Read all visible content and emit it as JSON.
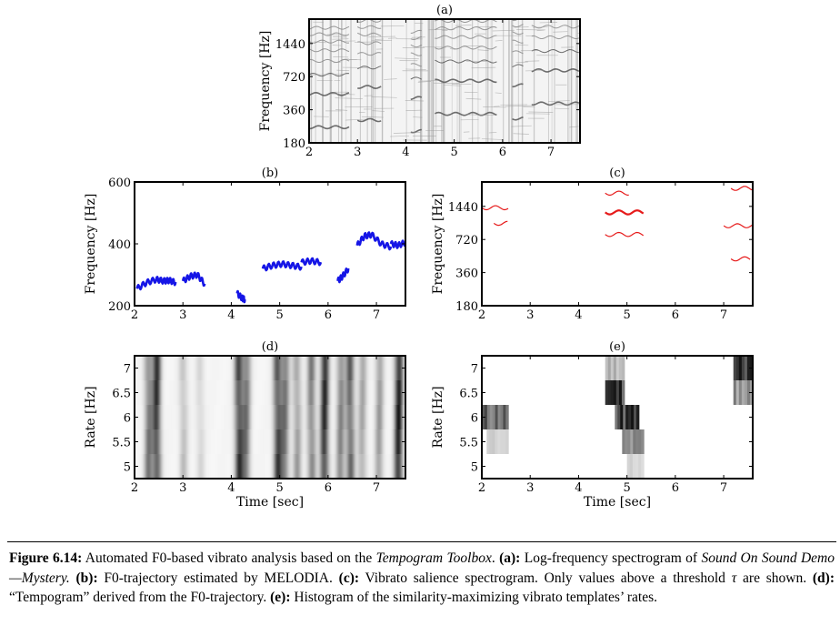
{
  "figure": {
    "panels": [
      {
        "id": "a",
        "title": "(a)",
        "ylabel": "Frequency [Hz]",
        "xlabel": "",
        "y_ticks": [
          "180",
          "360",
          "720",
          "1440"
        ],
        "x_ticks": [
          "2",
          "3",
          "4",
          "5",
          "6",
          "7"
        ]
      },
      {
        "id": "b",
        "title": "(b)",
        "ylabel": "Frequency [Hz]",
        "xlabel": "",
        "y_ticks": [
          "200",
          "400",
          "600"
        ],
        "x_ticks": [
          "2",
          "3",
          "4",
          "5",
          "6",
          "7"
        ]
      },
      {
        "id": "c",
        "title": "(c)",
        "ylabel": "Frequency [Hz]",
        "xlabel": "",
        "y_ticks": [
          "180",
          "360",
          "720",
          "1440"
        ],
        "x_ticks": [
          "2",
          "3",
          "4",
          "5",
          "6",
          "7"
        ]
      },
      {
        "id": "d",
        "title": "(d)",
        "ylabel": "Rate [Hz]",
        "xlabel": "Time [sec]",
        "y_ticks": [
          "5",
          "5.5",
          "6",
          "6.5",
          "7"
        ],
        "x_ticks": [
          "2",
          "3",
          "4",
          "5",
          "6",
          "7"
        ]
      },
      {
        "id": "e",
        "title": "(e)",
        "ylabel": "Rate [Hz]",
        "xlabel": "Time [sec]",
        "y_ticks": [
          "5",
          "5.5",
          "6",
          "6.5",
          "7"
        ],
        "x_ticks": [
          "2",
          "3",
          "4",
          "5",
          "6",
          "7"
        ]
      }
    ]
  },
  "chart_data": [
    {
      "type": "heatmap",
      "panel": "a",
      "title": "(a)",
      "ylabel": "Frequency [Hz]",
      "xlim": [
        2,
        7.6
      ],
      "ylim": [
        180,
        2400
      ],
      "yscale": "log",
      "note_values": []
    },
    {
      "type": "line",
      "panel": "b",
      "title": "(b)",
      "ylabel": "Frequency [Hz]",
      "xlim": [
        2,
        7.6
      ],
      "ylim": [
        200,
        600
      ],
      "color": "#1515e6",
      "series": [
        {
          "x": [
            2.05,
            2.25,
            2.45,
            2.6,
            2.72,
            2.85
          ],
          "y": [
            255,
            275,
            285,
            280,
            282,
            275
          ]
        },
        {
          "x": [
            3.0,
            3.15,
            3.3,
            3.45
          ],
          "y": [
            280,
            295,
            300,
            270
          ]
        },
        {
          "x": [
            4.12,
            4.22,
            4.28
          ],
          "y": [
            240,
            225,
            220
          ]
        },
        {
          "x": [
            4.65,
            4.85,
            5.05,
            5.25,
            5.45
          ],
          "y": [
            320,
            330,
            335,
            330,
            325
          ]
        },
        {
          "x": [
            5.45,
            5.65,
            5.85
          ],
          "y": [
            340,
            345,
            340
          ]
        },
        {
          "x": [
            6.2,
            6.3,
            6.42
          ],
          "y": [
            280,
            295,
            320
          ]
        },
        {
          "x": [
            6.6,
            6.75,
            6.9,
            7.1,
            7.3
          ],
          "y": [
            395,
            425,
            430,
            400,
            390
          ]
        },
        {
          "x": [
            7.3,
            7.45,
            7.6
          ],
          "y": [
            400,
            395,
            405
          ]
        }
      ]
    },
    {
      "type": "line",
      "panel": "c",
      "title": "(c)",
      "ylabel": "Frequency [Hz]",
      "xlim": [
        2,
        7.6
      ],
      "ylim": [
        180,
        2400
      ],
      "yscale": "log",
      "color": "#e61a1a",
      "series": [
        {
          "x0": 2.0,
          "x1": 2.55,
          "y": 1400
        },
        {
          "x0": 2.25,
          "x1": 2.55,
          "y": 1010
        },
        {
          "x0": 4.55,
          "x1": 5.05,
          "y": 1900
        },
        {
          "x0": 4.55,
          "x1": 5.35,
          "y": 1270
        },
        {
          "x0": 4.55,
          "x1": 5.35,
          "y": 800
        },
        {
          "x0": 7.15,
          "x1": 7.6,
          "y": 2100
        },
        {
          "x0": 7.0,
          "x1": 7.6,
          "y": 960
        },
        {
          "x0": 7.15,
          "x1": 7.55,
          "y": 480
        }
      ]
    },
    {
      "type": "heatmap",
      "panel": "d",
      "title": "(d)",
      "ylabel": "Rate [Hz]",
      "xlabel": "Time [sec]",
      "xlim": [
        2,
        7.6
      ],
      "ylim": [
        4.75,
        7.25
      ]
    },
    {
      "type": "heatmap",
      "panel": "e",
      "title": "(e)",
      "ylabel": "Rate [Hz]",
      "xlabel": "Time [sec]",
      "xlim": [
        2,
        7.6
      ],
      "ylim": [
        4.75,
        7.25
      ],
      "cells": [
        {
          "x0": 2.0,
          "x1": 2.55,
          "rate": 6.0,
          "level": 0.7
        },
        {
          "x0": 2.1,
          "x1": 2.55,
          "rate": 5.5,
          "level": 0.2
        },
        {
          "x0": 4.55,
          "x1": 4.95,
          "rate": 7.0,
          "level": 0.35
        },
        {
          "x0": 4.55,
          "x1": 4.95,
          "rate": 6.5,
          "level": 0.95
        },
        {
          "x0": 4.75,
          "x1": 5.25,
          "rate": 6.0,
          "level": 0.9
        },
        {
          "x0": 4.9,
          "x1": 5.35,
          "rate": 5.5,
          "level": 0.5
        },
        {
          "x0": 5.0,
          "x1": 5.35,
          "rate": 5.0,
          "level": 0.2
        },
        {
          "x0": 7.2,
          "x1": 7.6,
          "rate": 7.0,
          "level": 0.95
        },
        {
          "x0": 7.2,
          "x1": 7.6,
          "rate": 6.5,
          "level": 0.5
        }
      ]
    }
  ],
  "caption": {
    "label": "Figure 6.14:",
    "t1": " Automated F0-based vibrato analysis based on the ",
    "i1": "Tempogram Toolbox",
    "t2": ". ",
    "b1": "(a):",
    "t3": " Log-frequency spectrogram of ",
    "i2": "Sound On Sound Demo—Mystery.",
    "t4": " ",
    "b2": "(b):",
    "t5": " F0-trajectory estimated by MELODIA. ",
    "b3": "(c):",
    "t6": " Vibrato salience spectrogram. Only values above a threshold ",
    "i3": "τ",
    "t7": " are shown. ",
    "b4": "(d):",
    "t8": " “Tempogram” derived from the F0-trajectory. ",
    "b5": "(e):",
    "t9": " Histogram of the similarity-maximizing vibrato templates’ rates."
  }
}
